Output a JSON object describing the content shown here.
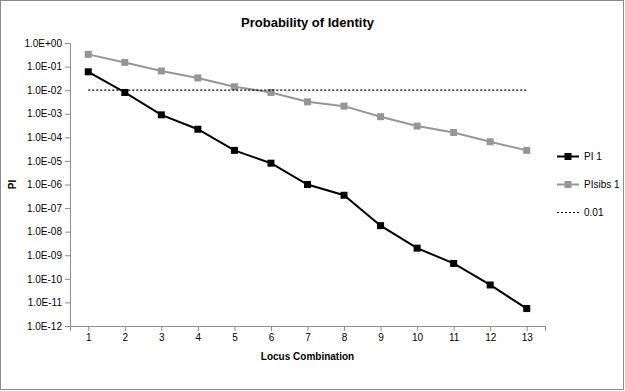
{
  "chart_data": {
    "type": "line",
    "title": "Probability of Identity",
    "x_label": "Locus Combination",
    "y_label": "PI",
    "categories": [
      "1",
      "2",
      "3",
      "4",
      "5",
      "6",
      "7",
      "8",
      "9",
      "10",
      "11",
      "12",
      "13"
    ],
    "series": [
      {
        "name": "PI 1",
        "color": "#000000",
        "marker": "square",
        "line_style": "solid",
        "values": [
          0.06,
          0.008,
          0.0009,
          0.00022,
          2.8e-05,
          8e-06,
          1e-06,
          3.5e-07,
          1.8e-08,
          2e-09,
          4.5e-10,
          5.5e-11,
          5.5e-12
        ]
      },
      {
        "name": "PIsibs 1",
        "color": "#969696",
        "marker": "square",
        "line_style": "solid",
        "values": [
          0.33,
          0.15,
          0.065,
          0.033,
          0.014,
          0.008,
          0.0032,
          0.0021,
          0.00075,
          0.0003,
          0.00016,
          6.5e-05,
          2.8e-05
        ]
      },
      {
        "name": "0.01",
        "color": "#000000",
        "marker": "none",
        "line_style": "dotted",
        "values": [
          0.01,
          0.01,
          0.01,
          0.01,
          0.01,
          0.01,
          0.01,
          0.01,
          0.01,
          0.01,
          0.01,
          0.01,
          0.01
        ]
      }
    ],
    "log": "y",
    "grid": false,
    "legend": "right",
    "ylim": [
      1e-12,
      1
    ],
    "yticks": [
      {
        "value": 1,
        "label": "1.0E+00"
      },
      {
        "value": 0.1,
        "label": "1.0E-01"
      },
      {
        "value": 0.01,
        "label": "1.0E-02"
      },
      {
        "value": 0.001,
        "label": "1.0E-03"
      },
      {
        "value": 0.0001,
        "label": "1.0E-04"
      },
      {
        "value": 1e-05,
        "label": "1.0E-05"
      },
      {
        "value": 1e-06,
        "label": "1.0E-06"
      },
      {
        "value": 1e-07,
        "label": "1.0E-07"
      },
      {
        "value": 1e-08,
        "label": "1.0E-08"
      },
      {
        "value": 1e-09,
        "label": "1.0E-09"
      },
      {
        "value": 1e-10,
        "label": "1.0E-10"
      },
      {
        "value": 1e-11,
        "label": "1.0E-11"
      },
      {
        "value": 1e-12,
        "label": "1.0E-12"
      }
    ]
  }
}
